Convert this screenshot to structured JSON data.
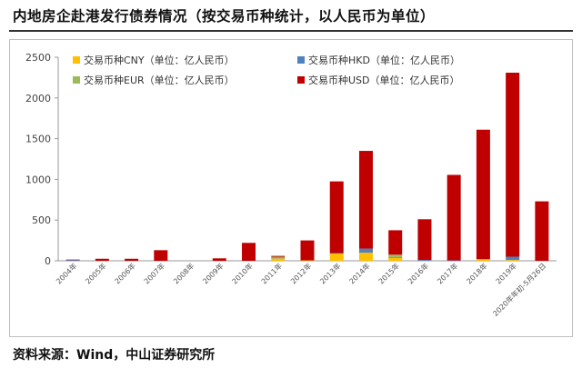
{
  "title": "内地房企赴港发行债券情况（按交易币种统计，以人民币为单位）",
  "source": "资料来源：Wind，中山证券研究所",
  "chart_data": {
    "type": "bar",
    "stacked": true,
    "title": "内地房企赴港发行债券情况（按交易币种统计，以人民币为单位）",
    "ylim": [
      0,
      2500
    ],
    "yticks": [
      "0",
      "500",
      "1000",
      "1500",
      "2000",
      "2500"
    ],
    "ytick_values": [
      0,
      500,
      1000,
      1500,
      2000,
      2500
    ],
    "grid": false,
    "legend_position": "top-left",
    "categories": [
      "2004年",
      "2005年",
      "2006年",
      "2007年",
      "2008年",
      "2009年",
      "2010年",
      "2011年",
      "2012年",
      "2013年",
      "2014年",
      "2015年",
      "2016年",
      "2017年",
      "2018年",
      "2019年",
      "2020年年初-5月26日"
    ],
    "series": [
      {
        "name": "交易币种CNY（单位：亿人民币）",
        "color": "#ffc000",
        "values": [
          0,
          0,
          0,
          0,
          0,
          0,
          0,
          30,
          5,
          90,
          100,
          40,
          0,
          0,
          20,
          10,
          0
        ]
      },
      {
        "name": "交易币种HKD（单位：亿人民币）",
        "color": "#4f81bd",
        "values": [
          10,
          0,
          0,
          0,
          0,
          0,
          0,
          10,
          0,
          5,
          50,
          5,
          10,
          5,
          0,
          40,
          0
        ]
      },
      {
        "name": "交易币种EUR（单位：亿人民币）",
        "color": "#9bbb59",
        "values": [
          0,
          0,
          0,
          0,
          0,
          0,
          0,
          10,
          0,
          0,
          0,
          30,
          0,
          0,
          0,
          0,
          0
        ]
      },
      {
        "name": "交易币种USD（单位：亿人民币）",
        "color": "#c00000",
        "values": [
          5,
          25,
          25,
          130,
          0,
          30,
          220,
          10,
          245,
          880,
          1200,
          300,
          500,
          1050,
          1590,
          2260,
          730
        ]
      }
    ]
  }
}
